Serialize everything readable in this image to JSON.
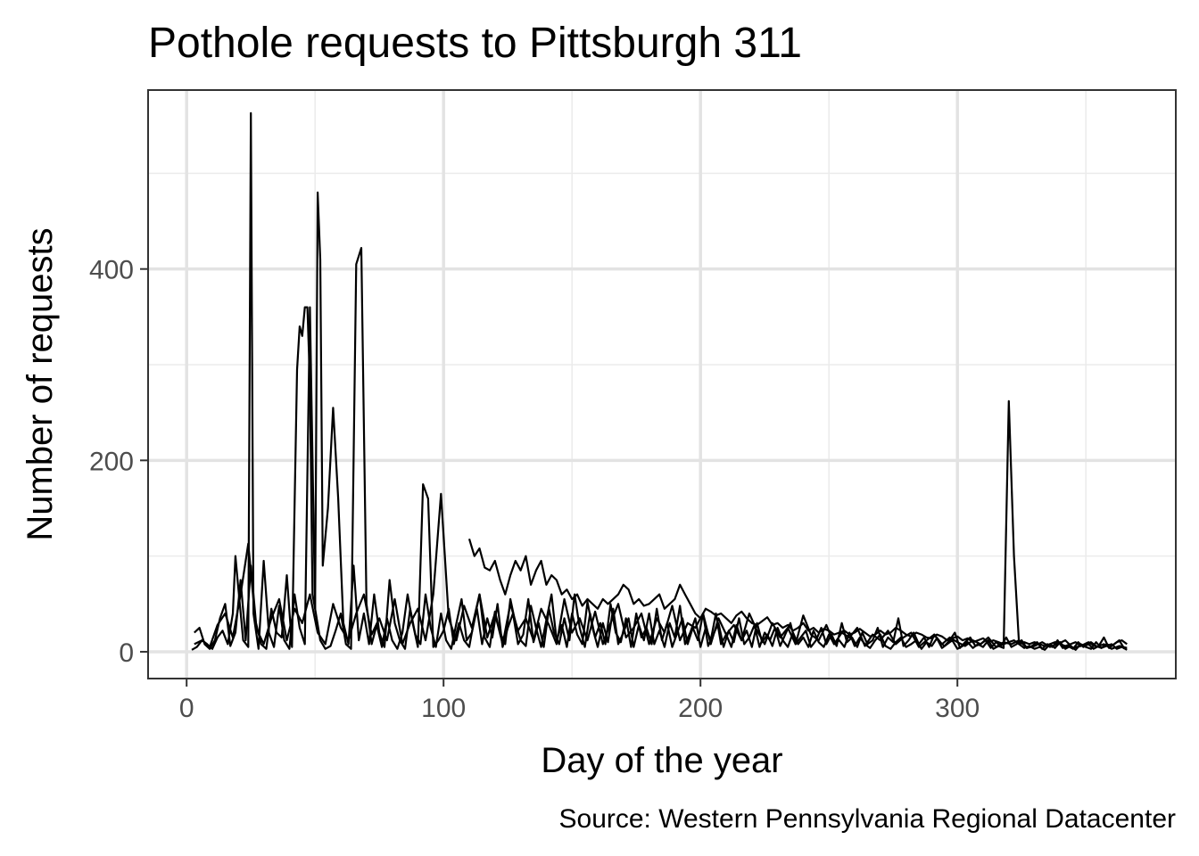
{
  "chart_data": {
    "type": "line",
    "title": "Pothole requests to Pittsburgh 311",
    "xlabel": "Day of the year",
    "ylabel": "Number of requests",
    "caption": "Source: Western Pennsylvania Regional Datacenter",
    "xlim": [
      -15,
      385
    ],
    "ylim": [
      -28,
      587
    ],
    "x_ticks": [
      0,
      100,
      200,
      300
    ],
    "x_tick_labels": [
      "0",
      "100",
      "200",
      "300"
    ],
    "y_ticks": [
      0,
      200,
      400
    ],
    "y_tick_labels": [
      "0",
      "200",
      "400"
    ],
    "x_minor_ticks": [
      50,
      150,
      250,
      350
    ],
    "y_minor_ticks": [
      100,
      300,
      500
    ],
    "grid": true,
    "legend": "none",
    "line_color": "#000000",
    "series": [
      {
        "x": [
          2,
          4,
          6,
          8,
          10,
          12,
          14,
          16,
          18,
          19,
          20,
          22,
          24,
          25,
          26,
          28,
          30,
          32,
          34,
          36,
          38,
          40,
          42,
          44,
          46,
          48,
          50,
          52,
          54,
          56,
          58,
          60,
          62,
          64,
          66,
          68,
          70,
          72,
          74,
          76,
          78,
          80,
          82,
          84,
          86,
          88,
          90,
          92,
          94,
          96,
          98,
          100,
          102,
          104,
          106,
          108,
          110,
          112,
          114,
          116,
          118,
          120,
          122,
          124,
          126,
          128,
          130,
          132,
          134,
          136,
          138,
          140,
          142,
          144,
          146,
          148,
          150,
          152,
          154,
          156,
          158,
          160,
          162,
          164,
          166,
          168,
          170,
          172,
          174,
          176,
          178,
          180,
          182,
          184,
          186,
          188,
          190,
          192,
          194,
          196,
          198,
          200,
          202,
          204,
          206,
          208,
          210,
          212,
          214,
          216,
          218,
          220,
          222,
          224,
          226,
          228,
          230,
          232,
          234,
          236,
          238,
          240,
          242,
          244,
          246,
          248,
          250,
          252,
          254,
          256,
          258,
          260,
          262,
          264,
          266,
          268,
          270,
          272,
          274,
          276,
          278,
          280,
          282,
          284,
          286,
          288,
          290,
          292,
          294,
          296,
          298,
          300,
          302,
          304,
          306,
          308,
          310,
          312,
          314,
          316,
          318,
          320,
          322,
          324,
          326,
          328,
          330,
          332,
          334,
          336,
          338,
          340,
          342,
          344,
          346,
          348,
          350,
          352,
          354,
          356,
          358,
          360,
          362,
          364,
          366
        ],
        "y": [
          2,
          5,
          12,
          8,
          3,
          15,
          22,
          8,
          40,
          100,
          70,
          12,
          5,
          563,
          40,
          3,
          95,
          20,
          5,
          48,
          12,
          3,
          60,
          25,
          8,
          360,
          45,
          12,
          3,
          6,
          22,
          40,
          8,
          3,
          405,
          422,
          50,
          8,
          28,
          5,
          35,
          12,
          3,
          20,
          60,
          30,
          5,
          175,
          160,
          5,
          12,
          22,
          45,
          8,
          30,
          12,
          5,
          35,
          60,
          15,
          5,
          42,
          20,
          8,
          55,
          30,
          12,
          6,
          48,
          25,
          5,
          33,
          60,
          12,
          28,
          5,
          40,
          18,
          8,
          52,
          25,
          5,
          30,
          10,
          45,
          8,
          20,
          35,
          5,
          28,
          12,
          40,
          8,
          22,
          5,
          30,
          15,
          48,
          8,
          20,
          35,
          5,
          25,
          12,
          40,
          8,
          18,
          5,
          28,
          12,
          22,
          5,
          30,
          10,
          18,
          6,
          25,
          12,
          5,
          20,
          8,
          15,
          5,
          22,
          10,
          5,
          18,
          8,
          12,
          5,
          20,
          6,
          15,
          8,
          4,
          12,
          18,
          6,
          3,
          10,
          15,
          5,
          8,
          12,
          3,
          10,
          6,
          14,
          4,
          8,
          12,
          3,
          6,
          10,
          4,
          8,
          5,
          12,
          3,
          6,
          4,
          262,
          100,
          8,
          4,
          6,
          3,
          5,
          2,
          8,
          4,
          10,
          3,
          6,
          2,
          8,
          5,
          3,
          10,
          4,
          6,
          8,
          3,
          5,
          2
        ]
      },
      {
        "x": [
          3,
          5,
          7,
          9,
          11,
          13,
          15,
          17,
          19,
          21,
          23,
          25,
          27,
          29,
          31,
          33,
          35,
          37,
          39,
          41,
          43,
          44,
          45,
          46,
          47,
          48,
          49,
          50,
          51,
          52,
          53,
          55,
          57,
          59,
          61,
          63,
          65,
          67,
          69,
          71,
          73,
          75,
          77,
          79,
          81,
          83,
          85,
          87,
          89,
          91,
          93,
          95,
          97,
          99,
          101,
          103,
          105,
          107,
          109,
          111,
          113,
          115,
          117,
          119,
          121,
          123,
          125,
          127,
          129,
          131,
          133,
          135,
          137,
          139,
          141,
          143,
          145,
          147,
          149,
          151,
          153,
          155,
          157,
          159,
          161,
          163,
          165,
          167,
          169,
          171,
          173,
          175,
          177,
          179,
          181,
          183,
          185,
          187,
          189,
          191,
          193,
          195,
          197,
          199,
          201,
          203,
          205,
          207,
          209,
          211,
          213,
          215,
          217,
          219,
          221,
          223,
          225,
          227,
          229,
          231,
          233,
          235,
          237,
          239,
          241,
          243,
          245,
          247,
          249,
          251,
          253,
          255,
          257,
          259,
          261,
          263,
          265,
          267,
          269,
          271,
          273,
          275,
          277,
          279,
          281,
          283,
          285,
          287,
          289,
          291,
          293,
          295,
          297,
          299,
          301,
          303,
          305,
          307,
          309,
          311,
          313,
          315,
          317,
          319,
          321,
          323,
          325,
          327,
          329,
          331,
          333,
          335,
          337,
          339,
          341,
          343,
          345,
          347,
          349,
          351,
          353,
          355,
          357,
          359,
          361,
          363,
          365
        ],
        "y": [
          20,
          25,
          8,
          3,
          12,
          35,
          50,
          6,
          20,
          75,
          12,
          90,
          30,
          8,
          3,
          45,
          20,
          15,
          80,
          5,
          295,
          340,
          330,
          360,
          360,
          280,
          60,
          45,
          480,
          410,
          90,
          150,
          255,
          160,
          30,
          8,
          90,
          12,
          40,
          8,
          60,
          20,
          5,
          75,
          30,
          12,
          3,
          45,
          18,
          8,
          60,
          25,
          5,
          40,
          12,
          3,
          30,
          55,
          12,
          20,
          45,
          8,
          35,
          15,
          50,
          5,
          25,
          40,
          8,
          18,
          55,
          10,
          30,
          5,
          45,
          20,
          8,
          35,
          12,
          60,
          25,
          5,
          40,
          15,
          30,
          8,
          50,
          20,
          10,
          35,
          5,
          40,
          15,
          25,
          8,
          45,
          12,
          30,
          5,
          20,
          35,
          8,
          25,
          12,
          40,
          6,
          18,
          30,
          5,
          22,
          10,
          35,
          8,
          15,
          28,
          5,
          20,
          12,
          25,
          6,
          18,
          30,
          8,
          15,
          22,
          5,
          12,
          25,
          8,
          18,
          6,
          30,
          10,
          15,
          5,
          20,
          8,
          12,
          25,
          5,
          15,
          10,
          35,
          6,
          12,
          20,
          8,
          15,
          5,
          18,
          10,
          6,
          12,
          20,
          4,
          10,
          15,
          6,
          8,
          12,
          4,
          10,
          6,
          15,
          5,
          8,
          12,
          4,
          6,
          10,
          3,
          8,
          5,
          12,
          4,
          6,
          3,
          10,
          5,
          8,
          3,
          6,
          15,
          4,
          8,
          12,
          3
        ]
      },
      {
        "x": [
          3,
          6,
          9,
          12,
          15,
          18,
          21,
          24,
          27,
          30,
          33,
          36,
          39,
          42,
          45,
          48,
          51,
          54,
          57,
          60,
          63,
          66,
          69,
          72,
          75,
          78,
          81,
          84,
          87,
          90,
          93,
          96,
          99,
          102,
          105,
          108,
          111,
          114,
          117,
          120,
          123,
          126,
          129,
          132,
          135,
          138,
          141,
          144,
          147,
          150,
          153,
          156,
          159,
          162,
          165,
          168,
          171,
          174,
          177,
          180,
          183,
          186,
          189,
          192,
          195,
          198,
          201,
          204,
          207,
          210,
          213,
          216,
          219,
          222,
          225,
          228,
          231,
          234,
          237,
          240,
          243,
          246,
          249,
          252,
          255,
          258,
          261,
          264,
          267,
          270,
          273,
          276,
          279,
          282,
          285,
          288,
          291,
          294,
          297,
          300,
          303,
          306,
          309,
          312,
          315,
          318,
          321,
          324,
          327,
          330,
          333,
          336,
          339,
          342,
          345,
          348,
          351,
          354,
          357,
          360,
          363,
          366
        ],
        "y": [
          8,
          12,
          5,
          28,
          40,
          15,
          60,
          113,
          25,
          8,
          35,
          55,
          12,
          45,
          30,
          60,
          20,
          8,
          50,
          25,
          12,
          40,
          60,
          18,
          35,
          12,
          55,
          8,
          30,
          45,
          12,
          60,
          165,
          35,
          12,
          48,
          25,
          60,
          15,
          40,
          8,
          50,
          22,
          35,
          12,
          45,
          28,
          8,
          55,
          20,
          35,
          12,
          42,
          8,
          30,
          50,
          15,
          25,
          40,
          8,
          35,
          20,
          48,
          12,
          30,
          25,
          40,
          8,
          35,
          18,
          28,
          12,
          40,
          22,
          8,
          30,
          15,
          25,
          8,
          38,
          18,
          12,
          28,
          8,
          20,
          15,
          25,
          6,
          18,
          12,
          22,
          8,
          15,
          20,
          5,
          12,
          18,
          8,
          15,
          10,
          6,
          12,
          8,
          15,
          5,
          10,
          8,
          12,
          4,
          6,
          10,
          5,
          8,
          12,
          4,
          6,
          10,
          5,
          8,
          3,
          6,
          4
        ]
      },
      {
        "x": [
          110,
          112,
          114,
          116,
          118,
          120,
          122,
          124,
          126,
          128,
          130,
          132,
          134,
          136,
          138,
          140,
          142,
          144,
          146,
          148,
          150,
          152,
          154,
          156,
          158,
          160,
          162,
          164,
          166,
          168,
          170,
          172,
          174,
          176,
          178,
          180,
          182,
          184,
          186,
          188,
          190,
          192,
          194,
          196,
          198,
          200,
          202,
          204,
          206,
          208,
          210,
          212,
          214,
          216,
          218,
          220,
          222,
          224,
          226,
          228,
          230,
          232,
          234,
          236,
          238,
          240,
          242,
          244,
          246,
          248,
          250,
          252,
          254,
          256,
          258,
          260,
          262,
          264,
          266,
          268,
          270,
          272,
          274,
          276,
          278,
          280,
          282,
          284,
          286,
          288,
          290,
          292,
          294,
          296,
          298,
          300,
          302,
          304,
          306,
          308,
          310,
          312,
          314,
          316,
          318,
          320,
          322,
          324,
          326,
          328,
          330,
          332,
          334,
          336,
          338,
          340,
          342,
          344,
          346,
          348,
          350,
          352,
          354,
          356,
          358,
          360,
          362,
          364,
          366
        ],
        "y": [
          118,
          100,
          108,
          88,
          85,
          95,
          75,
          60,
          80,
          95,
          85,
          100,
          70,
          85,
          95,
          70,
          80,
          75,
          60,
          65,
          55,
          60,
          48,
          55,
          50,
          45,
          55,
          50,
          55,
          60,
          70,
          65,
          50,
          55,
          48,
          50,
          55,
          60,
          45,
          50,
          55,
          70,
          60,
          50,
          40,
          35,
          45,
          42,
          38,
          40,
          35,
          30,
          38,
          42,
          35,
          30,
          28,
          32,
          36,
          28,
          30,
          25,
          28,
          22,
          25,
          30,
          22,
          25,
          20,
          24,
          22,
          18,
          20,
          22,
          18,
          20,
          24,
          20,
          16,
          18,
          22,
          18,
          20,
          25,
          22,
          18,
          16,
          20,
          18,
          15,
          14,
          18,
          16,
          12,
          14,
          16,
          12,
          14,
          10,
          12,
          14,
          10,
          12,
          10,
          8,
          10,
          12,
          8,
          10,
          8,
          10,
          8,
          6,
          8,
          10,
          8,
          6,
          8,
          10,
          6,
          8,
          10,
          6,
          4,
          8,
          6,
          10,
          12,
          8
        ]
      }
    ]
  }
}
